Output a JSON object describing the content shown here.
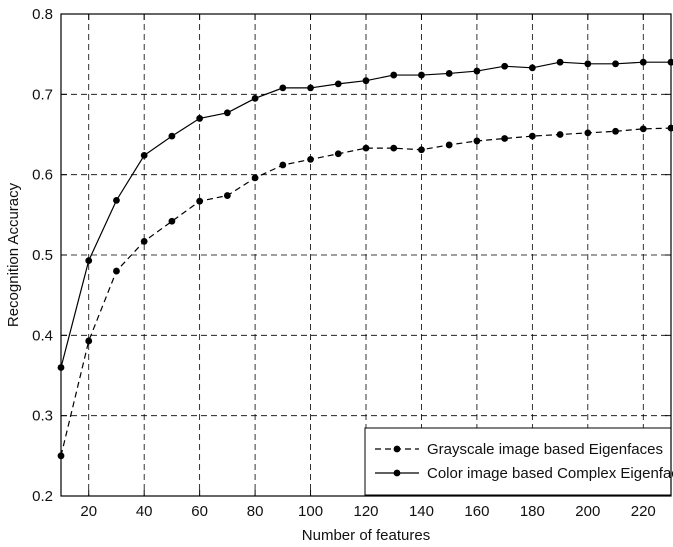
{
  "chart_data": {
    "type": "line",
    "title": "",
    "xlabel": "Number of features",
    "ylabel": "Recognition Accuracy",
    "xlim": [
      10,
      230
    ],
    "ylim": [
      0.2,
      0.8
    ],
    "grid": true,
    "legend_position": "bottom-right",
    "xticks": [
      20,
      40,
      60,
      80,
      100,
      120,
      140,
      160,
      180,
      200,
      220
    ],
    "xtick_labels": [
      "20",
      "40",
      "60",
      "80",
      "100",
      "120",
      "140",
      "160",
      "180",
      "200",
      "220"
    ],
    "yticks": [
      0.2,
      0.3,
      0.4,
      0.5,
      0.6,
      0.7,
      0.8
    ],
    "ytick_labels": [
      "0.2",
      "0.3",
      "0.4",
      "0.5",
      "0.6",
      "0.7",
      "0.8"
    ],
    "series": [
      {
        "name": "Grayscale image based Eigenfaces",
        "line_style": "dashed",
        "marker": "filled-circle",
        "color": "#000000",
        "x": [
          10,
          20,
          30,
          40,
          50,
          60,
          70,
          80,
          90,
          100,
          110,
          120,
          130,
          140,
          150,
          160,
          170,
          180,
          190,
          200,
          210,
          220,
          230
        ],
        "values": [
          0.25,
          0.393,
          0.48,
          0.517,
          0.542,
          0.567,
          0.574,
          0.596,
          0.612,
          0.619,
          0.626,
          0.633,
          0.633,
          0.631,
          0.637,
          0.642,
          0.645,
          0.648,
          0.65,
          0.652,
          0.654,
          0.657,
          0.658
        ]
      },
      {
        "name": "Color image based Complex Eigenfaces",
        "line_style": "solid",
        "marker": "filled-circle",
        "color": "#000000",
        "x": [
          10,
          20,
          30,
          40,
          50,
          60,
          70,
          80,
          90,
          100,
          110,
          120,
          130,
          140,
          150,
          160,
          170,
          180,
          190,
          200,
          210,
          220,
          230
        ],
        "values": [
          0.36,
          0.493,
          0.568,
          0.624,
          0.648,
          0.67,
          0.677,
          0.695,
          0.708,
          0.708,
          0.713,
          0.717,
          0.724,
          0.724,
          0.726,
          0.729,
          0.735,
          0.733,
          0.74,
          0.738,
          0.738,
          0.74,
          0.74
        ]
      }
    ]
  }
}
